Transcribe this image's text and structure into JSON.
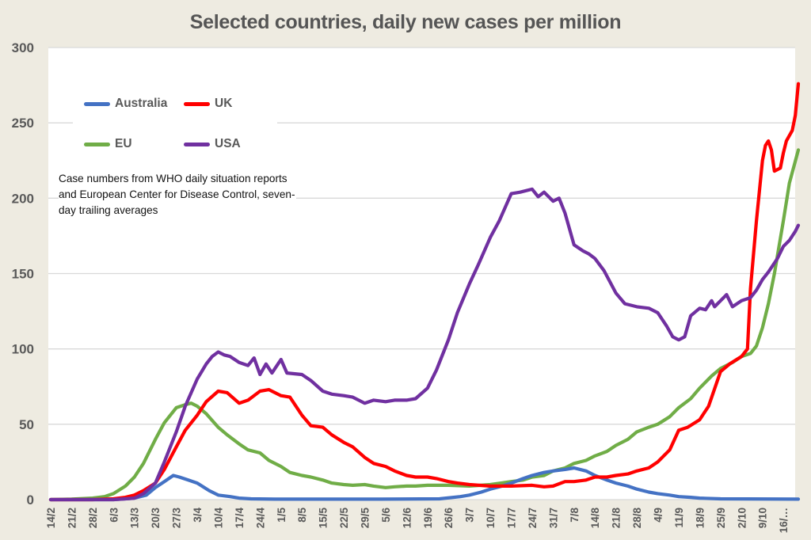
{
  "chart_data": {
    "type": "line",
    "title": "Selected countries, daily new cases per million",
    "xlabel": "",
    "ylabel": "",
    "ylim": [
      0,
      300
    ],
    "yticks": [
      0,
      50,
      100,
      150,
      200,
      250,
      300
    ],
    "grid": true,
    "legend_position": "top-left",
    "x_start": "14/2",
    "x_unit": "days since 14/2",
    "xlim_days": [
      0,
      250
    ],
    "x_tick_labels": [
      "14/2",
      "21/2",
      "28/2",
      "6/3",
      "13/3",
      "20/3",
      "27/3",
      "3/4",
      "10/4",
      "17/4",
      "24/4",
      "1/5",
      "8/5",
      "15/5",
      "22/5",
      "29/5",
      "5/6",
      "12/6",
      "19/6",
      "26/6",
      "3/7",
      "10/7",
      "17/7",
      "24/7",
      "31/7",
      "7/8",
      "14/8",
      "21/8",
      "28/8",
      "4/9",
      "11/9",
      "18/9",
      "25/9",
      "2/10",
      "9/10",
      "16/…"
    ],
    "x_tick_interval_days": 7,
    "annotation": "Case numbers from WHO daily situation reports and European Center for Disease Control, seven-day trailing averages",
    "series": [
      {
        "name": "Australia",
        "color": "#4472c4",
        "points": [
          [
            0,
            0
          ],
          [
            21,
            0
          ],
          [
            28,
            1
          ],
          [
            32,
            3
          ],
          [
            35,
            8
          ],
          [
            38,
            12
          ],
          [
            41,
            16
          ],
          [
            43,
            15
          ],
          [
            46,
            13
          ],
          [
            49,
            11
          ],
          [
            53,
            6
          ],
          [
            56,
            3
          ],
          [
            60,
            2
          ],
          [
            63,
            1
          ],
          [
            67,
            0.5
          ],
          [
            75,
            0.3
          ],
          [
            110,
            0.3
          ],
          [
            130,
            0.5
          ],
          [
            137,
            2
          ],
          [
            140,
            3
          ],
          [
            144,
            5
          ],
          [
            147,
            7
          ],
          [
            151,
            9
          ],
          [
            154,
            11
          ],
          [
            158,
            14
          ],
          [
            161,
            16
          ],
          [
            165,
            18
          ],
          [
            168,
            19
          ],
          [
            172,
            20
          ],
          [
            175,
            21
          ],
          [
            179,
            19
          ],
          [
            182,
            16
          ],
          [
            186,
            13
          ],
          [
            189,
            11
          ],
          [
            193,
            9
          ],
          [
            196,
            7
          ],
          [
            200,
            5
          ],
          [
            203,
            4
          ],
          [
            207,
            3
          ],
          [
            210,
            2
          ],
          [
            214,
            1.5
          ],
          [
            217,
            1
          ],
          [
            224,
            0.5
          ],
          [
            250,
            0.3
          ]
        ]
      },
      {
        "name": "UK",
        "color": "#ff0000",
        "points": [
          [
            0,
            0
          ],
          [
            14,
            0
          ],
          [
            21,
            0.5
          ],
          [
            25,
            1.5
          ],
          [
            28,
            3
          ],
          [
            31,
            6
          ],
          [
            35,
            11
          ],
          [
            38,
            20
          ],
          [
            42,
            35
          ],
          [
            45,
            46
          ],
          [
            49,
            56
          ],
          [
            52,
            65
          ],
          [
            56,
            72
          ],
          [
            59,
            71
          ],
          [
            63,
            64
          ],
          [
            66,
            66
          ],
          [
            70,
            72
          ],
          [
            73,
            73
          ],
          [
            77,
            69
          ],
          [
            80,
            68
          ],
          [
            84,
            56
          ],
          [
            87,
            49
          ],
          [
            91,
            48
          ],
          [
            94,
            43
          ],
          [
            98,
            38
          ],
          [
            101,
            35
          ],
          [
            105,
            28
          ],
          [
            108,
            24
          ],
          [
            112,
            22
          ],
          [
            115,
            19
          ],
          [
            119,
            16
          ],
          [
            122,
            15
          ],
          [
            126,
            15
          ],
          [
            129,
            14
          ],
          [
            133,
            12
          ],
          [
            136,
            11
          ],
          [
            140,
            10
          ],
          [
            147,
            9
          ],
          [
            154,
            9
          ],
          [
            161,
            9.5
          ],
          [
            165,
            8.5
          ],
          [
            168,
            9
          ],
          [
            172,
            12
          ],
          [
            175,
            12
          ],
          [
            179,
            13
          ],
          [
            182,
            15
          ],
          [
            186,
            15
          ],
          [
            189,
            16
          ],
          [
            193,
            17
          ],
          [
            196,
            19
          ],
          [
            200,
            21
          ],
          [
            203,
            25
          ],
          [
            207,
            33
          ],
          [
            210,
            46
          ],
          [
            213,
            48
          ],
          [
            217,
            53
          ],
          [
            220,
            62
          ],
          [
            224,
            85
          ],
          [
            227,
            90
          ],
          [
            231,
            95
          ],
          [
            233,
            100
          ],
          [
            234,
            140
          ],
          [
            236,
            185
          ],
          [
            238,
            225
          ],
          [
            239,
            235
          ],
          [
            240,
            238
          ],
          [
            241,
            232
          ],
          [
            242,
            218
          ],
          [
            244,
            220
          ],
          [
            245,
            230
          ],
          [
            246,
            238
          ],
          [
            248,
            245
          ],
          [
            249,
            255
          ],
          [
            250,
            276
          ]
        ]
      },
      {
        "name": "EU",
        "color": "#70ad47",
        "points": [
          [
            0,
            0
          ],
          [
            7,
            0.3
          ],
          [
            14,
            1
          ],
          [
            18,
            2
          ],
          [
            21,
            4
          ],
          [
            25,
            9
          ],
          [
            28,
            15
          ],
          [
            31,
            24
          ],
          [
            35,
            40
          ],
          [
            38,
            51
          ],
          [
            42,
            61
          ],
          [
            45,
            63
          ],
          [
            47,
            64
          ],
          [
            49,
            62
          ],
          [
            52,
            57
          ],
          [
            56,
            48
          ],
          [
            59,
            43
          ],
          [
            63,
            37
          ],
          [
            66,
            33
          ],
          [
            70,
            31
          ],
          [
            73,
            26
          ],
          [
            77,
            22
          ],
          [
            80,
            18
          ],
          [
            84,
            16
          ],
          [
            87,
            15
          ],
          [
            91,
            13
          ],
          [
            94,
            11
          ],
          [
            98,
            10
          ],
          [
            101,
            9.5
          ],
          [
            105,
            10
          ],
          [
            108,
            9
          ],
          [
            112,
            8
          ],
          [
            115,
            8.5
          ],
          [
            119,
            9
          ],
          [
            122,
            9
          ],
          [
            126,
            9.5
          ],
          [
            133,
            9.5
          ],
          [
            140,
            9
          ],
          [
            147,
            10
          ],
          [
            154,
            12
          ],
          [
            158,
            13
          ],
          [
            161,
            15
          ],
          [
            165,
            16
          ],
          [
            168,
            19
          ],
          [
            172,
            21
          ],
          [
            175,
            24
          ],
          [
            179,
            26
          ],
          [
            182,
            29
          ],
          [
            186,
            32
          ],
          [
            189,
            36
          ],
          [
            193,
            40
          ],
          [
            196,
            45
          ],
          [
            200,
            48
          ],
          [
            203,
            50
          ],
          [
            207,
            55
          ],
          [
            210,
            61
          ],
          [
            214,
            67
          ],
          [
            217,
            74
          ],
          [
            221,
            82
          ],
          [
            224,
            87
          ],
          [
            228,
            91
          ],
          [
            231,
            95
          ],
          [
            234,
            97
          ],
          [
            236,
            102
          ],
          [
            238,
            114
          ],
          [
            240,
            130
          ],
          [
            242,
            150
          ],
          [
            245,
            185
          ],
          [
            247,
            210
          ],
          [
            250,
            232
          ]
        ]
      },
      {
        "name": "USA",
        "color": "#7030a0",
        "points": [
          [
            0,
            0
          ],
          [
            21,
            0
          ],
          [
            25,
            0.5
          ],
          [
            28,
            1
          ],
          [
            31,
            4
          ],
          [
            35,
            11
          ],
          [
            38,
            25
          ],
          [
            42,
            45
          ],
          [
            45,
            62
          ],
          [
            49,
            80
          ],
          [
            52,
            90
          ],
          [
            54,
            95
          ],
          [
            56,
            98
          ],
          [
            58,
            96
          ],
          [
            60,
            95
          ],
          [
            63,
            91
          ],
          [
            66,
            89
          ],
          [
            68,
            94
          ],
          [
            70,
            83
          ],
          [
            72,
            90
          ],
          [
            74,
            84
          ],
          [
            76,
            90
          ],
          [
            77,
            93
          ],
          [
            79,
            84
          ],
          [
            84,
            83
          ],
          [
            87,
            79
          ],
          [
            91,
            72
          ],
          [
            94,
            70
          ],
          [
            98,
            69
          ],
          [
            101,
            68
          ],
          [
            105,
            64
          ],
          [
            108,
            66
          ],
          [
            112,
            65
          ],
          [
            115,
            66
          ],
          [
            119,
            66
          ],
          [
            122,
            67
          ],
          [
            126,
            74
          ],
          [
            129,
            86
          ],
          [
            133,
            106
          ],
          [
            136,
            124
          ],
          [
            140,
            143
          ],
          [
            143,
            156
          ],
          [
            147,
            174
          ],
          [
            150,
            185
          ],
          [
            154,
            203
          ],
          [
            157,
            204
          ],
          [
            161,
            206
          ],
          [
            163,
            201
          ],
          [
            165,
            204
          ],
          [
            168,
            198
          ],
          [
            170,
            200
          ],
          [
            172,
            190
          ],
          [
            175,
            169
          ],
          [
            178,
            165
          ],
          [
            180,
            163
          ],
          [
            182,
            160
          ],
          [
            185,
            152
          ],
          [
            189,
            137
          ],
          [
            192,
            130
          ],
          [
            196,
            128
          ],
          [
            200,
            127
          ],
          [
            203,
            124
          ],
          [
            206,
            115
          ],
          [
            208,
            108
          ],
          [
            210,
            106
          ],
          [
            212,
            108
          ],
          [
            214,
            122
          ],
          [
            217,
            127
          ],
          [
            219,
            126
          ],
          [
            221,
            132
          ],
          [
            222,
            128
          ],
          [
            224,
            132
          ],
          [
            226,
            136
          ],
          [
            228,
            128
          ],
          [
            231,
            132
          ],
          [
            234,
            134
          ],
          [
            236,
            139
          ],
          [
            238,
            146
          ],
          [
            240,
            151
          ],
          [
            243,
            160
          ],
          [
            245,
            168
          ],
          [
            247,
            172
          ],
          [
            249,
            178
          ],
          [
            250,
            182
          ]
        ]
      }
    ]
  }
}
